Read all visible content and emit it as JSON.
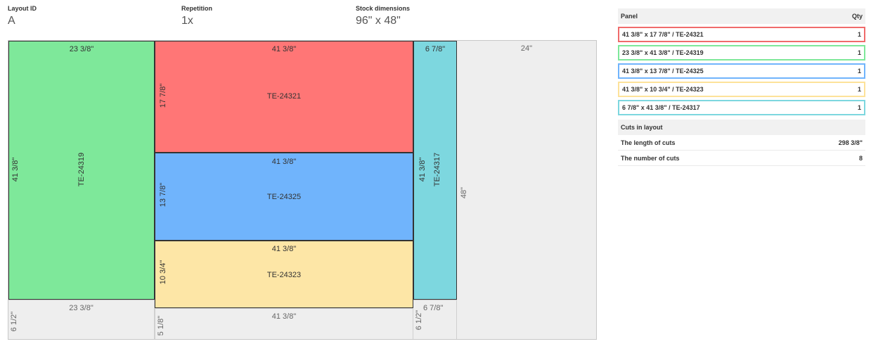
{
  "header": {
    "layout_id_label": "Layout ID",
    "layout_id_value": "A",
    "repetition_label": "Repetition",
    "repetition_value": "1x",
    "stock_label": "Stock dimensions",
    "stock_value": "96\" x 48\""
  },
  "layout": {
    "pieces": {
      "green": {
        "name": "TE-24319",
        "top": "23 3/8\"",
        "side": "41 3/8\"",
        "color": "#7ee89a"
      },
      "red": {
        "name": "TE-24321",
        "top": "41 3/8\"",
        "side": "17 7/8\"",
        "color": "#ff7676"
      },
      "blue": {
        "name": "TE-24325",
        "top": "41 3/8\"",
        "side": "13 7/8\"",
        "color": "#70b4fc"
      },
      "yellow": {
        "name": "TE-24323",
        "top": "41 3/8\"",
        "side": "10 3/4\"",
        "color": "#fde6a6"
      },
      "cyan": {
        "name": "TE-24317",
        "top": "6 7/8\"",
        "side": "41 3/8\"",
        "color": "#7dd7df"
      }
    },
    "waste": {
      "right_top": "24\"",
      "right_side": "48\"",
      "below_green_top": "23 3/8\"",
      "below_green_side": "6 1/2\"",
      "below_yellow_top": "41 3/8\"",
      "below_yellow_side": "5 1/8\"",
      "below_cyan_top": "6 7/8\"",
      "below_cyan_side": "6 1/2\""
    }
  },
  "panels_table": {
    "col_panel": "Panel",
    "col_qty": "Qty",
    "rows": [
      {
        "label": "41 3/8\" x 17 7/8\" / TE-24321",
        "qty": "1",
        "color": "#f06b6b"
      },
      {
        "label": "23 3/8\" x 41 3/8\" / TE-24319",
        "qty": "1",
        "color": "#7ee89a"
      },
      {
        "label": "41 3/8\" x 13 7/8\" / TE-24325",
        "qty": "1",
        "color": "#70b4fc"
      },
      {
        "label": "41 3/8\" x 10 3/4\" / TE-24323",
        "qty": "1",
        "color": "#fde29a"
      },
      {
        "label": "6 7/8\" x 41 3/8\" / TE-24317",
        "qty": "1",
        "color": "#7dd7df"
      }
    ]
  },
  "cuts": {
    "title": "Cuts in layout",
    "length_label": "The length of cuts",
    "length_value": "298 3/8\"",
    "number_label": "The number of cuts",
    "number_value": "8"
  }
}
